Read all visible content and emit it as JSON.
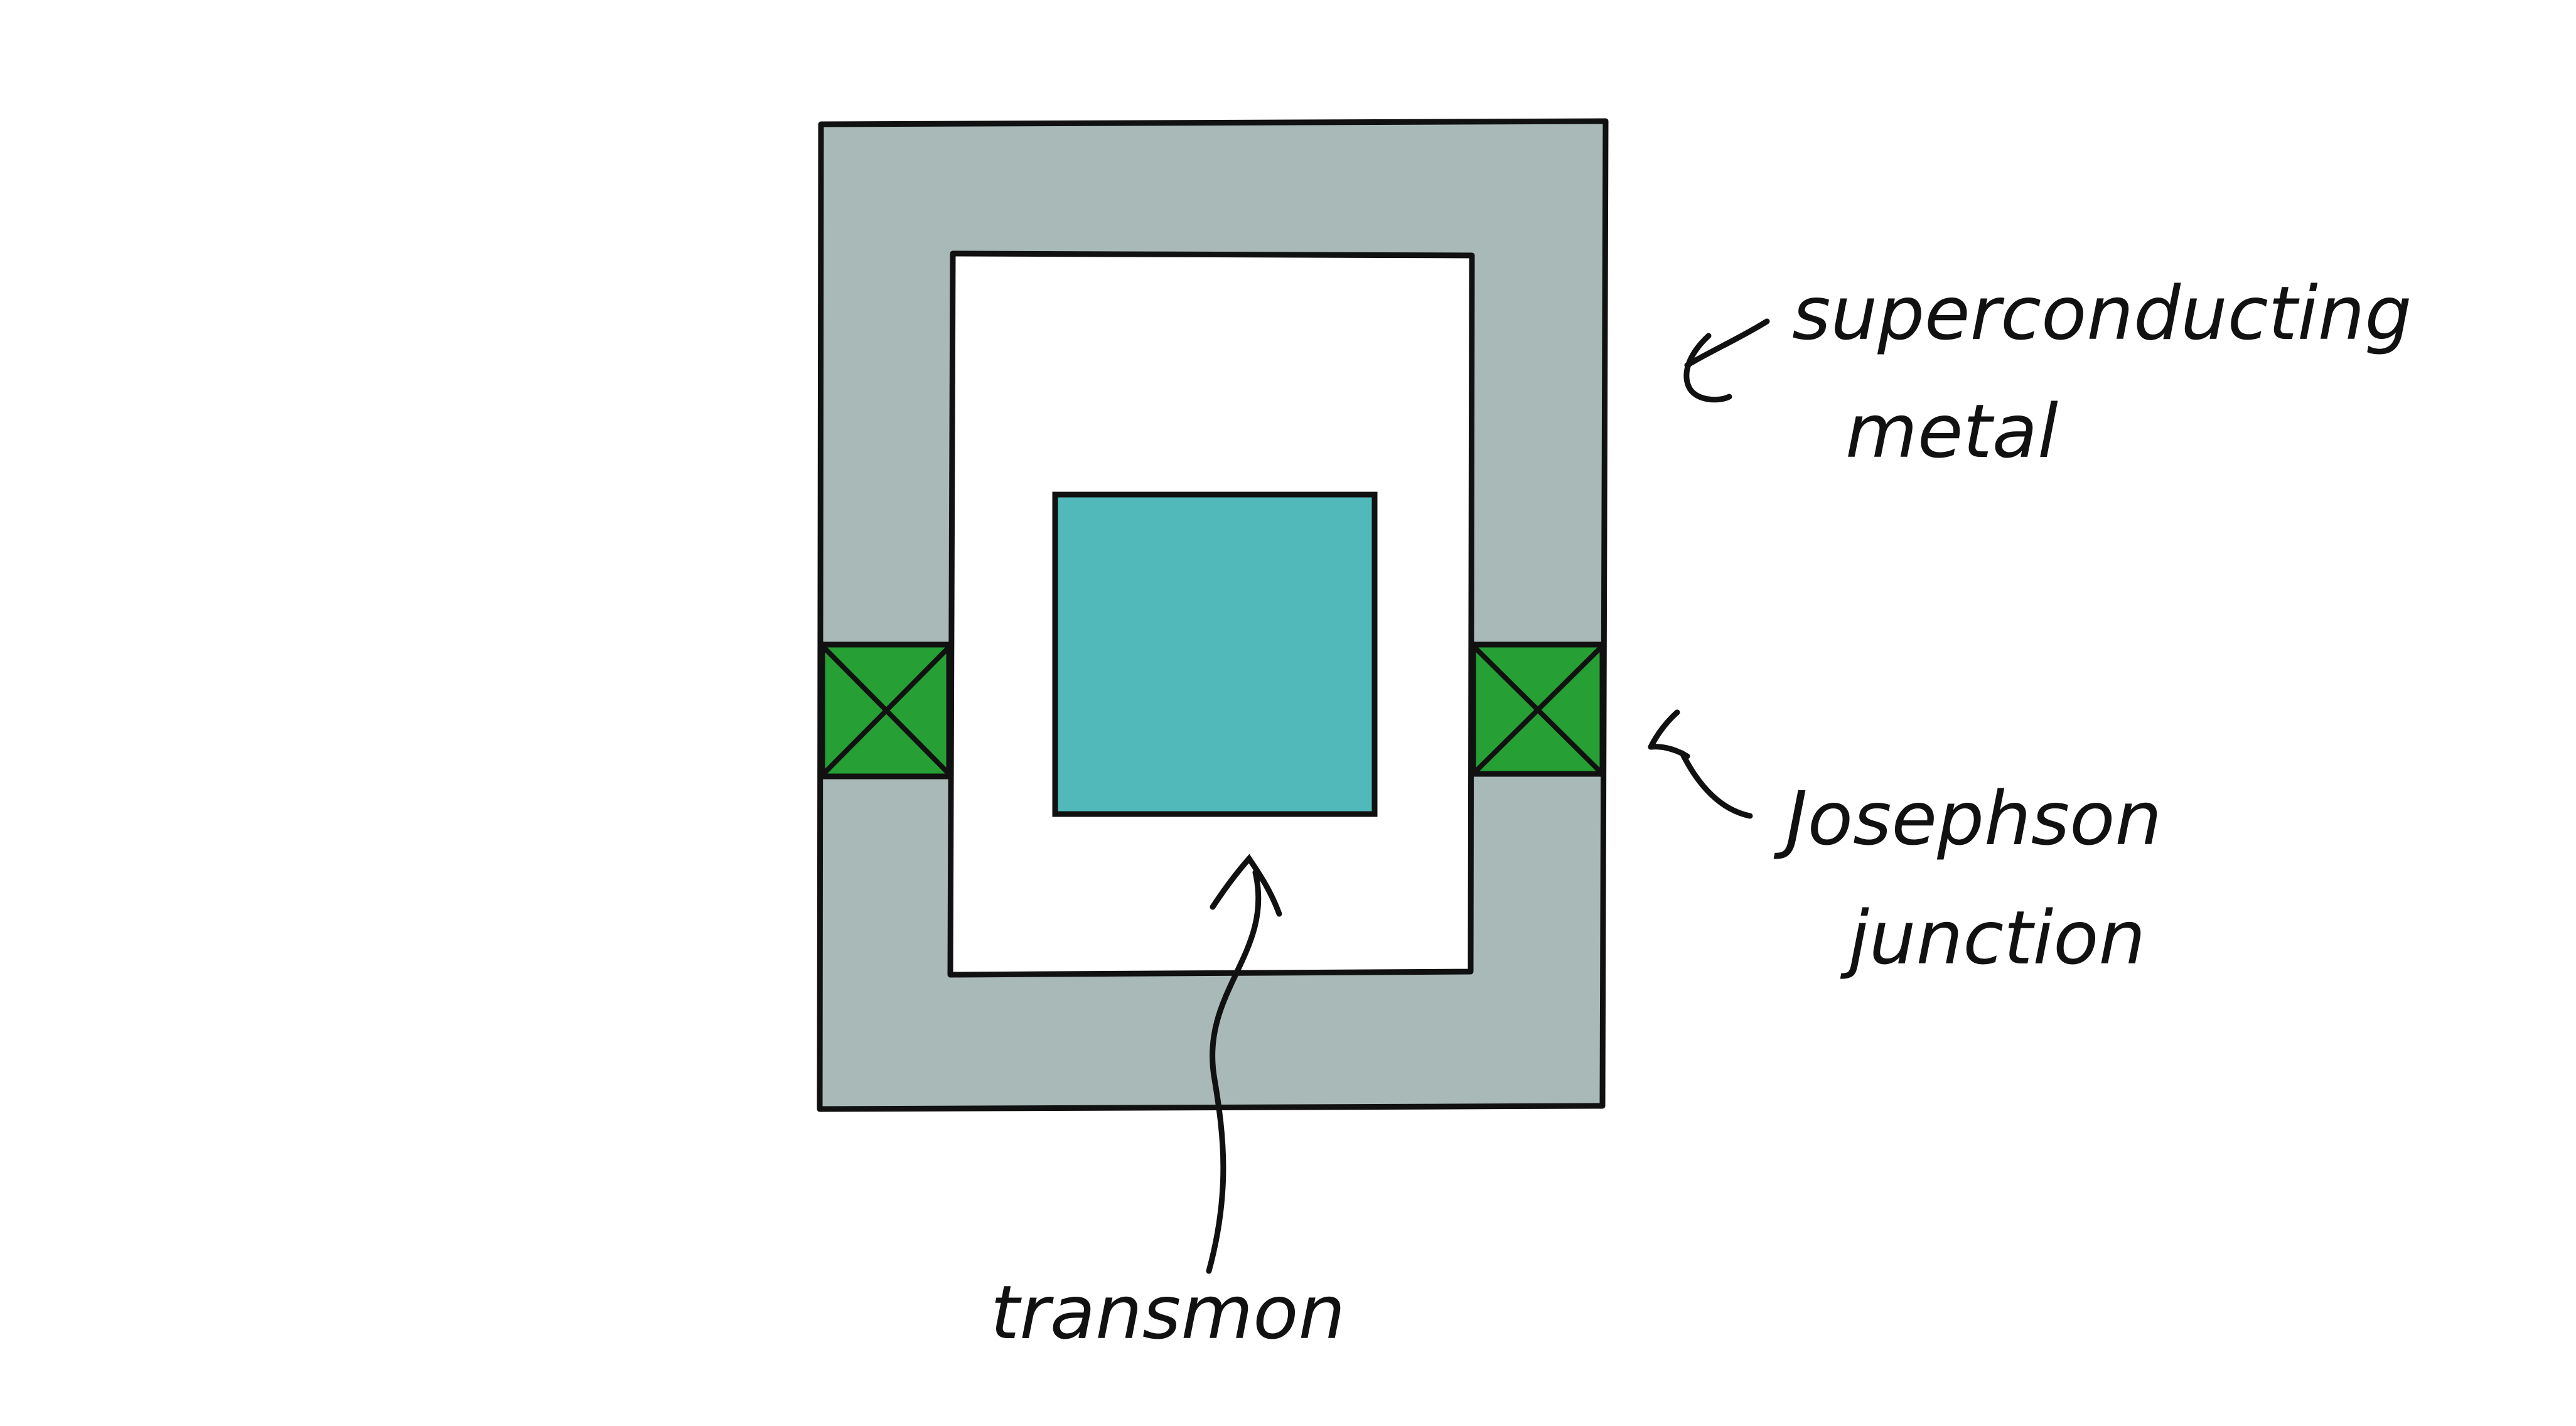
{
  "colors": {
    "metal": "#a8b9b8",
    "island": "#52b9bb",
    "junction": "#26a034",
    "stroke": "#111111",
    "background": "#ffffff"
  },
  "labels": {
    "superconducting": "superconducting",
    "metal": "metal",
    "josephson": "Josephson",
    "junction": "junction",
    "transmon": "transmon"
  }
}
